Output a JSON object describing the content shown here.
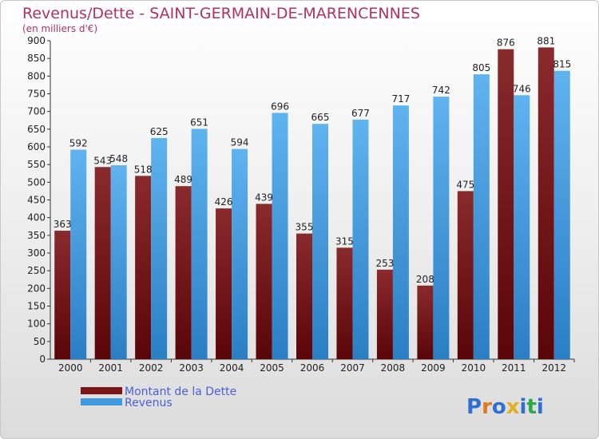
{
  "chart_data": {
    "type": "bar",
    "title": "Revenus/Dette - SAINT-GERMAIN-DE-MARENCENNES",
    "subtitle": "(en milliers d'€)",
    "categories": [
      "2000",
      "2001",
      "2002",
      "2003",
      "2004",
      "2005",
      "2006",
      "2007",
      "2008",
      "2009",
      "2010",
      "2011",
      "2012"
    ],
    "series": [
      {
        "name": "Montant de la Dette",
        "color": "#7a1518",
        "values": [
          363,
          543,
          518,
          489,
          426,
          439,
          355,
          315,
          253,
          208,
          475,
          876,
          881
        ]
      },
      {
        "name": "Revenus",
        "color": "#3f9be0",
        "values": [
          592,
          548,
          625,
          651,
          594,
          696,
          665,
          677,
          717,
          742,
          805,
          746,
          815
        ]
      }
    ],
    "ylim": [
      0,
      900
    ],
    "ytick_step": 50,
    "grid": false,
    "legend_position": "bottom-left"
  },
  "brand": {
    "text": "Proxiti",
    "letter_colors": [
      "#2f6fcf",
      "#e07a1e",
      "#2f6fcf",
      "#e0b020",
      "#2f6fcf",
      "#2aa84a",
      "#2f6fcf"
    ]
  }
}
